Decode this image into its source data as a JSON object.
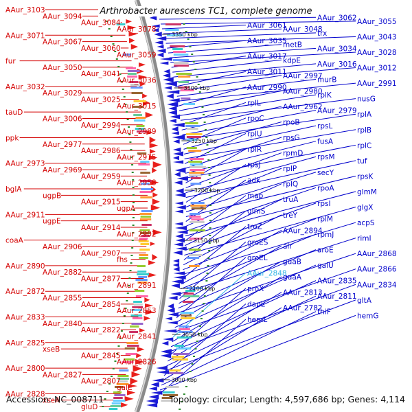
{
  "title": "Arthrobacter aurescens TC1, complete genome",
  "footer": {
    "accession": "Accession: NC_008711",
    "summary": "Topology: circular; Length: 4,597,686 bp; Genes: 4,114"
  },
  "colors": {
    "left_labels": "#d40000",
    "right_labels": "#0000cc",
    "highlight_label": "#33b5e5",
    "forward_strand": "#e8201c",
    "reverse_strand": "#1a1ad6",
    "backbone": "#8a8a8a"
  },
  "scale_ticks": [
    "3350 kbp",
    "3300 kbp",
    "3250 kbp",
    "3200 kbp",
    "3150 kbp",
    "3100 kbp",
    "3050 kbp",
    "3000 kbp"
  ],
  "left_labels": [
    "AAur_3103",
    "AAur_3094",
    "AAur_3084",
    "AAur_3078",
    "AAur_3071",
    "AAur_3067",
    "AAur_3060",
    "AAur_3059",
    "fur",
    "AAur_3050",
    "AAur_3041",
    "AAur_3036",
    "AAur_3032",
    "AAur_3029",
    "AAur_3025",
    "AAur_3015",
    "tauD",
    "AAur_3006",
    "AAur_2994",
    "AAur_2989",
    "ppk",
    "AAur_2977",
    "AAur_2986",
    "AAur_2975",
    "AAur_2973",
    "AAur_2969",
    "AAur_2959",
    "AAur_2958",
    "bglA",
    "ugpB",
    "AAur_2915",
    "ugpA",
    "AAur_2911",
    "ugpE",
    "AAur_2914",
    "AAur_2902",
    "coaA",
    "AAur_2906",
    "AAur_2907",
    "fhs",
    "AAur_2890",
    "AAur_2882",
    "AAur_2877",
    "AAur_2891",
    "AAur_2872",
    "AAur_2855",
    "AAur_2854",
    "AAur_2853",
    "AAur_2833",
    "AAur_2840",
    "AAur_2822",
    "AAur_2841",
    "AAur_2825",
    "xseB",
    "AAur_2845",
    "AAur_2826",
    "AAur_2800",
    "AAur_2827",
    "AAur_2807",
    "galE",
    "AAur_2828",
    "xseA",
    "gluD"
  ],
  "right_labels": [
    "AAur_3074",
    "adhA",
    "AAur_3062",
    "AAur_3055",
    "AAur_3061",
    "AAur_3048",
    "trx",
    "AAur_3043",
    "AAur_3035",
    "metB",
    "AAur_3034",
    "AAur_3028",
    "AAur_3017",
    "kdpE",
    "AAur_3016",
    "AAur_3012",
    "AAur_3011",
    "AAur_2997",
    "murB",
    "AAur_2991",
    "AAur_2990",
    "AAur_2980",
    "rplK",
    "nusG",
    "rplL",
    "AAur_2962",
    "AAur_2979",
    "rplA",
    "rpoC",
    "rpoB",
    "rpsL",
    "rplB",
    "rplU",
    "rpsG",
    "fusA",
    "rplC",
    "rplR",
    "rpmD",
    "rpsM",
    "tuf",
    "rpsJ",
    "rplP",
    "secY",
    "rpsK",
    "adk",
    "rplQ",
    "rpoA",
    "glmM",
    "map",
    "truA",
    "rpsI",
    "glgX",
    "glmS",
    "treY",
    "rplM",
    "acpS",
    "treZ",
    "AAur_2894",
    "rpmJ",
    "rimI",
    "groES",
    "alr",
    "aroE",
    "AAur_2868",
    "groEL",
    "guaB",
    "galU",
    "AAur_2866",
    "AAur_2848",
    "guaA",
    "AAur_2835",
    "AAur_2834",
    "proX",
    "AAur_2813",
    "AAur_2811",
    "gltA",
    "dapE",
    "AAur_2782",
    "thiF",
    "hemG",
    "hemL"
  ],
  "highlight_labels": [
    "AAur_2848"
  ]
}
